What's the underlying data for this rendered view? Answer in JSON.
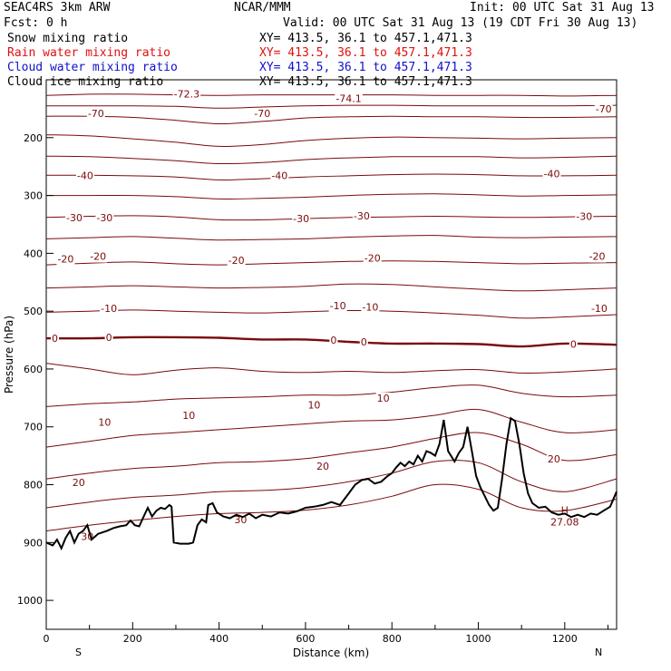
{
  "header": {
    "model": "SEAC4RS  3km ARW",
    "org": "NCAR/MMM",
    "init": "Init: 00 UTC Sat 31 Aug 13",
    "fcst": "Fcst:   0 h",
    "valid": "Valid: 00 UTC Sat 31 Aug 13 (19 CDT Fri 30 Aug 13)",
    "fields": [
      {
        "name": "Snow mixing ratio",
        "xy": "XY= 413.5, 36.1 to 457.1,471.3",
        "color": "#000000"
      },
      {
        "name": "Rain water mixing ratio",
        "xy": "XY= 413.5, 36.1 to 457.1,471.3",
        "color": "#e01010"
      },
      {
        "name": "Cloud water mixing ratio",
        "xy": "XY= 413.5, 36.1 to 457.1,471.3",
        "color": "#1010d0"
      },
      {
        "name": "Cloud ice mixing ratio",
        "xy": "XY= 413.5, 36.1 to 457.1,471.3",
        "color": "#000000"
      }
    ]
  },
  "chart_data": {
    "type": "line",
    "title": "",
    "xlabel": "Distance (km)",
    "ylabel": "Pressure (hPa)",
    "xlim": [
      0,
      1320
    ],
    "ylim": [
      1050,
      100
    ],
    "xticks": [
      "0",
      "200",
      "400",
      "600",
      "800",
      "1000",
      "1200"
    ],
    "xtick_values": [
      0,
      200,
      400,
      600,
      800,
      1000,
      1200
    ],
    "yticks": [
      "200",
      "300",
      "400",
      "500",
      "600",
      "700",
      "800",
      "900",
      "1000"
    ],
    "ytick_values": [
      200,
      300,
      400,
      500,
      600,
      700,
      800,
      900,
      1000
    ],
    "end_labels": {
      "left": "S",
      "right": "N"
    },
    "contour_color": "#7a0a0a",
    "terrain_color": "#000000",
    "contour_levels": [
      {
        "p": [
          127,
          125,
          125,
          126,
          127,
          126,
          126,
          126,
          126,
          127,
          127,
          127,
          128,
          127
        ],
        "label": "",
        "bold": false
      },
      {
        "p": [
          145,
          145,
          145,
          146,
          149,
          147,
          145,
          144,
          144,
          145,
          145,
          145,
          145,
          144
        ],
        "label": "",
        "bold": false
      },
      {
        "p": [
          163,
          163,
          165,
          170,
          176,
          172,
          166,
          164,
          163,
          164,
          164,
          165,
          165,
          164
        ],
        "label": "",
        "bold": false
      },
      {
        "p": [
          195,
          197,
          202,
          208,
          215,
          212,
          205,
          201,
          199,
          200,
          201,
          202,
          201,
          200
        ],
        "label": "",
        "bold": false
      },
      {
        "p": [
          232,
          233,
          236,
          240,
          245,
          243,
          238,
          235,
          233,
          233,
          233,
          235,
          234,
          232
        ],
        "label": "",
        "bold": false
      },
      {
        "p": [
          265,
          265,
          266,
          268,
          273,
          271,
          268,
          266,
          264,
          263,
          264,
          266,
          266,
          265
        ],
        "label": "",
        "bold": false
      },
      {
        "p": [
          300,
          300,
          300,
          302,
          306,
          305,
          303,
          300,
          298,
          297,
          299,
          301,
          300,
          299
        ],
        "label": "",
        "bold": false
      },
      {
        "p": [
          338,
          336,
          335,
          337,
          342,
          342,
          340,
          338,
          337,
          336,
          337,
          338,
          337,
          336
        ],
        "label": "",
        "bold": false
      },
      {
        "p": [
          375,
          373,
          371,
          374,
          377,
          376,
          375,
          372,
          370,
          369,
          372,
          373,
          372,
          371
        ],
        "label": "",
        "bold": false
      },
      {
        "p": [
          420,
          417,
          415,
          418,
          420,
          418,
          416,
          414,
          413,
          414,
          416,
          418,
          417,
          416
        ],
        "label": "",
        "bold": false
      },
      {
        "p": [
          460,
          458,
          456,
          458,
          460,
          459,
          457,
          453,
          454,
          458,
          462,
          465,
          463,
          460
        ],
        "label": "",
        "bold": false
      },
      {
        "p": [
          502,
          500,
          498,
          500,
          502,
          503,
          501,
          499,
          500,
          503,
          507,
          512,
          510,
          506
        ],
        "label": "",
        "bold": false
      },
      {
        "p": [
          547,
          547,
          545,
          545,
          546,
          549,
          549,
          553,
          556,
          556,
          557,
          561,
          556,
          558
        ],
        "label": "0",
        "bold": true
      },
      {
        "p": [
          590,
          600,
          610,
          602,
          598,
          604,
          606,
          604,
          606,
          603,
          601,
          607,
          605,
          600
        ],
        "label": "",
        "bold": false
      },
      {
        "p": [
          665,
          660,
          657,
          652,
          650,
          648,
          645,
          645,
          640,
          632,
          628,
          642,
          648,
          645
        ],
        "label": "10",
        "bold": false
      },
      {
        "p": [
          735,
          725,
          715,
          710,
          705,
          700,
          695,
          690,
          688,
          680,
          670,
          692,
          710,
          705
        ],
        "label": "",
        "bold": false
      },
      {
        "p": [
          790,
          780,
          772,
          768,
          762,
          760,
          755,
          745,
          735,
          720,
          710,
          730,
          758,
          748
        ],
        "label": "20",
        "bold": false
      },
      {
        "p": [
          840,
          830,
          822,
          818,
          812,
          810,
          805,
          795,
          780,
          760,
          762,
          795,
          812,
          790
        ],
        "label": "",
        "bold": false
      },
      {
        "p": [
          880,
          870,
          862,
          855,
          850,
          848,
          844,
          835,
          820,
          800,
          808,
          840,
          845,
          825
        ],
        "label": "30",
        "bold": false
      }
    ],
    "contour_x": [
      0,
      100,
      200,
      300,
      400,
      500,
      600,
      700,
      800,
      900,
      1000,
      1100,
      1200,
      1320
    ],
    "contour_labels": [
      {
        "text": "-70",
        "x": 115,
        "p": 158
      },
      {
        "text": "-70",
        "x": 500,
        "p": 158
      },
      {
        "text": "-70",
        "x": 1290,
        "p": 150
      },
      {
        "text": "-72.3",
        "x": 325,
        "p": 124
      },
      {
        "text": "-74.1",
        "x": 700,
        "p": 132
      },
      {
        "text": "-40",
        "x": 90,
        "p": 265
      },
      {
        "text": "-40",
        "x": 540,
        "p": 265
      },
      {
        "text": "-40",
        "x": 1170,
        "p": 262
      },
      {
        "text": "-30",
        "x": 65,
        "p": 338
      },
      {
        "text": "-30",
        "x": 135,
        "p": 338
      },
      {
        "text": "-30",
        "x": 590,
        "p": 340
      },
      {
        "text": "-30",
        "x": 730,
        "p": 335
      },
      {
        "text": "-30",
        "x": 1245,
        "p": 336
      },
      {
        "text": "-20",
        "x": 45,
        "p": 410
      },
      {
        "text": "-20",
        "x": 120,
        "p": 405
      },
      {
        "text": "-20",
        "x": 440,
        "p": 412
      },
      {
        "text": "-20",
        "x": 755,
        "p": 408
      },
      {
        "text": "-20",
        "x": 1275,
        "p": 405
      },
      {
        "text": "-10",
        "x": 145,
        "p": 495
      },
      {
        "text": "-10",
        "x": 675,
        "p": 490
      },
      {
        "text": "-10",
        "x": 750,
        "p": 493
      },
      {
        "text": "-10",
        "x": 1280,
        "p": 495
      },
      {
        "text": "0",
        "x": 20,
        "p": 547
      },
      {
        "text": "0",
        "x": 145,
        "p": 545
      },
      {
        "text": "0",
        "x": 665,
        "p": 550
      },
      {
        "text": "0",
        "x": 735,
        "p": 553
      },
      {
        "text": "0",
        "x": 1220,
        "p": 557
      },
      {
        "text": "10",
        "x": 135,
        "p": 692
      },
      {
        "text": "10",
        "x": 330,
        "p": 680
      },
      {
        "text": "10",
        "x": 620,
        "p": 662
      },
      {
        "text": "10",
        "x": 780,
        "p": 650
      },
      {
        "text": "20",
        "x": 75,
        "p": 796
      },
      {
        "text": "20",
        "x": 640,
        "p": 768
      },
      {
        "text": "20",
        "x": 1175,
        "p": 755
      },
      {
        "text": "30",
        "x": 95,
        "p": 889
      },
      {
        "text": "30",
        "x": 450,
        "p": 860
      }
    ],
    "high": {
      "label": "H",
      "value": "27.08",
      "x": 1200,
      "p": 850
    },
    "terrain": [
      [
        0,
        900
      ],
      [
        15,
        905
      ],
      [
        25,
        895
      ],
      [
        35,
        910
      ],
      [
        45,
        892
      ],
      [
        55,
        880
      ],
      [
        65,
        900
      ],
      [
        75,
        885
      ],
      [
        85,
        880
      ],
      [
        95,
        870
      ],
      [
        105,
        895
      ],
      [
        120,
        885
      ],
      [
        140,
        880
      ],
      [
        155,
        875
      ],
      [
        170,
        872
      ],
      [
        185,
        870
      ],
      [
        195,
        862
      ],
      [
        205,
        870
      ],
      [
        215,
        872
      ],
      [
        225,
        856
      ],
      [
        235,
        840
      ],
      [
        245,
        855
      ],
      [
        255,
        845
      ],
      [
        265,
        840
      ],
      [
        275,
        842
      ],
      [
        285,
        835
      ],
      [
        290,
        838
      ],
      [
        295,
        900
      ],
      [
        310,
        902
      ],
      [
        330,
        902
      ],
      [
        340,
        900
      ],
      [
        350,
        870
      ],
      [
        360,
        860
      ],
      [
        370,
        865
      ],
      [
        375,
        835
      ],
      [
        385,
        832
      ],
      [
        395,
        848
      ],
      [
        410,
        855
      ],
      [
        425,
        858
      ],
      [
        440,
        852
      ],
      [
        455,
        856
      ],
      [
        470,
        850
      ],
      [
        485,
        858
      ],
      [
        500,
        852
      ],
      [
        520,
        855
      ],
      [
        540,
        848
      ],
      [
        560,
        850
      ],
      [
        580,
        846
      ],
      [
        600,
        840
      ],
      [
        620,
        838
      ],
      [
        640,
        835
      ],
      [
        660,
        830
      ],
      [
        680,
        835
      ],
      [
        700,
        815
      ],
      [
        715,
        800
      ],
      [
        730,
        792
      ],
      [
        745,
        790
      ],
      [
        760,
        798
      ],
      [
        775,
        795
      ],
      [
        790,
        785
      ],
      [
        800,
        780
      ],
      [
        810,
        770
      ],
      [
        820,
        762
      ],
      [
        830,
        768
      ],
      [
        840,
        760
      ],
      [
        850,
        765
      ],
      [
        860,
        750
      ],
      [
        870,
        760
      ],
      [
        880,
        742
      ],
      [
        890,
        745
      ],
      [
        900,
        750
      ],
      [
        910,
        730
      ],
      [
        920,
        688
      ],
      [
        930,
        742
      ],
      [
        945,
        760
      ],
      [
        955,
        745
      ],
      [
        965,
        735
      ],
      [
        975,
        700
      ],
      [
        985,
        742
      ],
      [
        995,
        785
      ],
      [
        1005,
        805
      ],
      [
        1015,
        820
      ],
      [
        1025,
        835
      ],
      [
        1035,
        845
      ],
      [
        1045,
        840
      ],
      [
        1055,
        790
      ],
      [
        1065,
        730
      ],
      [
        1075,
        685
      ],
      [
        1085,
        690
      ],
      [
        1095,
        730
      ],
      [
        1105,
        780
      ],
      [
        1115,
        815
      ],
      [
        1125,
        832
      ],
      [
        1140,
        840
      ],
      [
        1155,
        838
      ],
      [
        1170,
        848
      ],
      [
        1185,
        852
      ],
      [
        1200,
        850
      ],
      [
        1215,
        856
      ],
      [
        1230,
        852
      ],
      [
        1245,
        856
      ],
      [
        1260,
        850
      ],
      [
        1275,
        852
      ],
      [
        1290,
        845
      ],
      [
        1305,
        838
      ],
      [
        1320,
        812
      ]
    ]
  }
}
